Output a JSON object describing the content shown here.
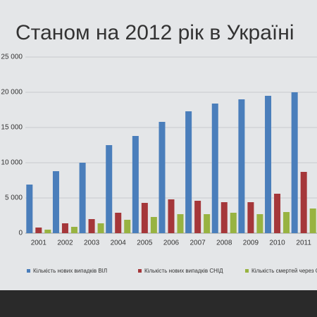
{
  "chart_data": {
    "type": "bar",
    "title": "Станом на 2012 рік в Україні",
    "categories": [
      "2001",
      "2002",
      "2003",
      "2004",
      "2005",
      "2006",
      "2007",
      "2008",
      "2009",
      "2010",
      "2011"
    ],
    "series": [
      {
        "name": "Кількість нових випадків ВІЛ",
        "color": "#4a7ebb",
        "values": [
          6900,
          8800,
          10000,
          12500,
          13800,
          15800,
          17300,
          18400,
          19000,
          19500,
          20000
        ]
      },
      {
        "name": "Кількість нових випадків СНІД",
        "color": "#a5373a",
        "values": [
          800,
          1400,
          2000,
          2900,
          4300,
          4800,
          4600,
          4400,
          4400,
          5600,
          8700
        ]
      },
      {
        "name": "Кількість смертей через СНІД",
        "color": "#98b341",
        "values": [
          500,
          900,
          1400,
          1900,
          2300,
          2700,
          2700,
          2900,
          2700,
          3000,
          3500
        ]
      }
    ],
    "ylim": [
      0,
      25000
    ],
    "yticks": [
      0,
      {
        "value": 5000,
        "label": "5 000"
      },
      {
        "value": 10000,
        "label": "10 000"
      },
      {
        "value": 15000,
        "label": "15 000"
      },
      {
        "value": 20000,
        "label": "20 000"
      },
      {
        "value": 25000,
        "label": "25 000"
      }
    ],
    "grid": true,
    "legend": "bottom"
  }
}
